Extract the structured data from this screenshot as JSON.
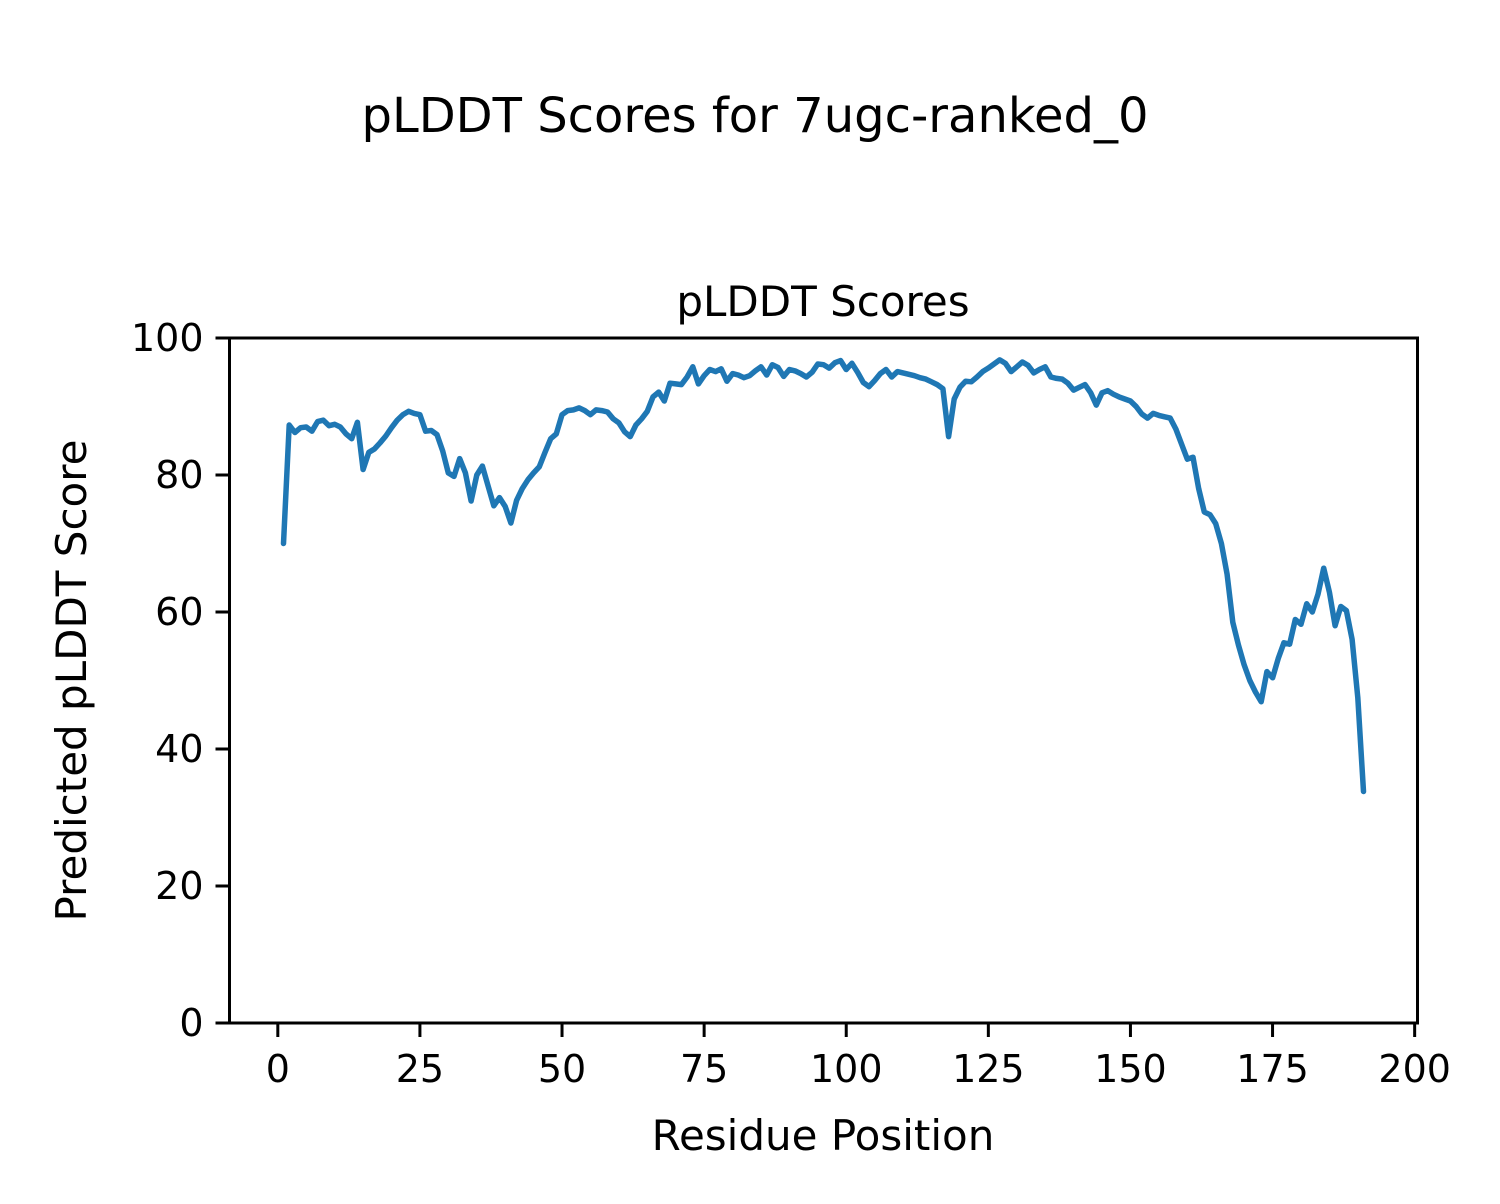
{
  "figure": {
    "suptitle": "pLDDT Scores for 7ugc-ranked_0"
  },
  "chart_data": {
    "type": "line",
    "title": "pLDDT Scores",
    "xlabel": "Residue Position",
    "ylabel": "Predicted pLDDT Score",
    "xlim": [
      -8.5,
      200.5
    ],
    "ylim": [
      0,
      100
    ],
    "xticks": [
      0,
      25,
      50,
      75,
      100,
      125,
      150,
      175,
      200
    ],
    "yticks": [
      0,
      20,
      40,
      60,
      80,
      100
    ],
    "grid": false,
    "legend": false,
    "line_color": "#1f77b4",
    "line_width": 5.5,
    "series_name": "pLDDT score per residue",
    "x_start": 1,
    "x_step": 1,
    "values": [
      70.0,
      87.3,
      86.2,
      86.9,
      87.0,
      86.4,
      87.8,
      88.0,
      87.2,
      87.4,
      87.0,
      86.0,
      85.3,
      87.7,
      80.8,
      83.3,
      83.8,
      84.7,
      85.7,
      86.9,
      88.0,
      88.8,
      89.3,
      89.0,
      88.8,
      86.4,
      86.5,
      85.9,
      83.5,
      80.3,
      79.8,
      82.4,
      80.3,
      76.2,
      80.0,
      81.3,
      78.4,
      75.5,
      76.7,
      75.4,
      73.0,
      76.3,
      78.0,
      79.3,
      80.3,
      81.2,
      83.3,
      85.3,
      86.0,
      88.8,
      89.4,
      89.5,
      89.8,
      89.4,
      88.8,
      89.5,
      89.4,
      89.2,
      88.2,
      87.6,
      86.3,
      85.6,
      87.3,
      88.2,
      89.3,
      91.4,
      92.1,
      90.8,
      93.4,
      93.3,
      93.2,
      94.3,
      95.8,
      93.3,
      94.5,
      95.4,
      95.1,
      95.5,
      93.7,
      94.8,
      94.6,
      94.2,
      94.5,
      95.2,
      95.8,
      94.6,
      96.1,
      95.7,
      94.4,
      95.4,
      95.2,
      94.8,
      94.3,
      95.0,
      96.2,
      96.1,
      95.6,
      96.4,
      96.7,
      95.4,
      96.3,
      95.0,
      93.5,
      92.9,
      93.8,
      94.8,
      95.4,
      94.3,
      95.1,
      94.9,
      94.7,
      94.5,
      94.2,
      94.0,
      93.6,
      93.2,
      92.6,
      85.6,
      91.1,
      92.8,
      93.7,
      93.6,
      94.3,
      95.1,
      95.6,
      96.2,
      96.8,
      96.3,
      95.1,
      95.8,
      96.5,
      96.0,
      94.9,
      95.4,
      95.8,
      94.3,
      94.1,
      94.0,
      93.4,
      92.4,
      92.8,
      93.2,
      92.0,
      90.2,
      92.0,
      92.3,
      91.8,
      91.4,
      91.1,
      90.8,
      90.0,
      88.9,
      88.3,
      89.0,
      88.7,
      88.5,
      88.3,
      86.7,
      84.5,
      82.3,
      82.6,
      78.0,
      74.6,
      74.2,
      72.9,
      70.0,
      65.5,
      58.5,
      55.2,
      52.3,
      50.0,
      48.3,
      46.9,
      51.3,
      50.4,
      53.2,
      55.5,
      55.3,
      58.9,
      58.2,
      61.2,
      60.0,
      62.6,
      66.4,
      62.9,
      58.0,
      60.8,
      60.2,
      56.0,
      47.5,
      33.8
    ]
  }
}
